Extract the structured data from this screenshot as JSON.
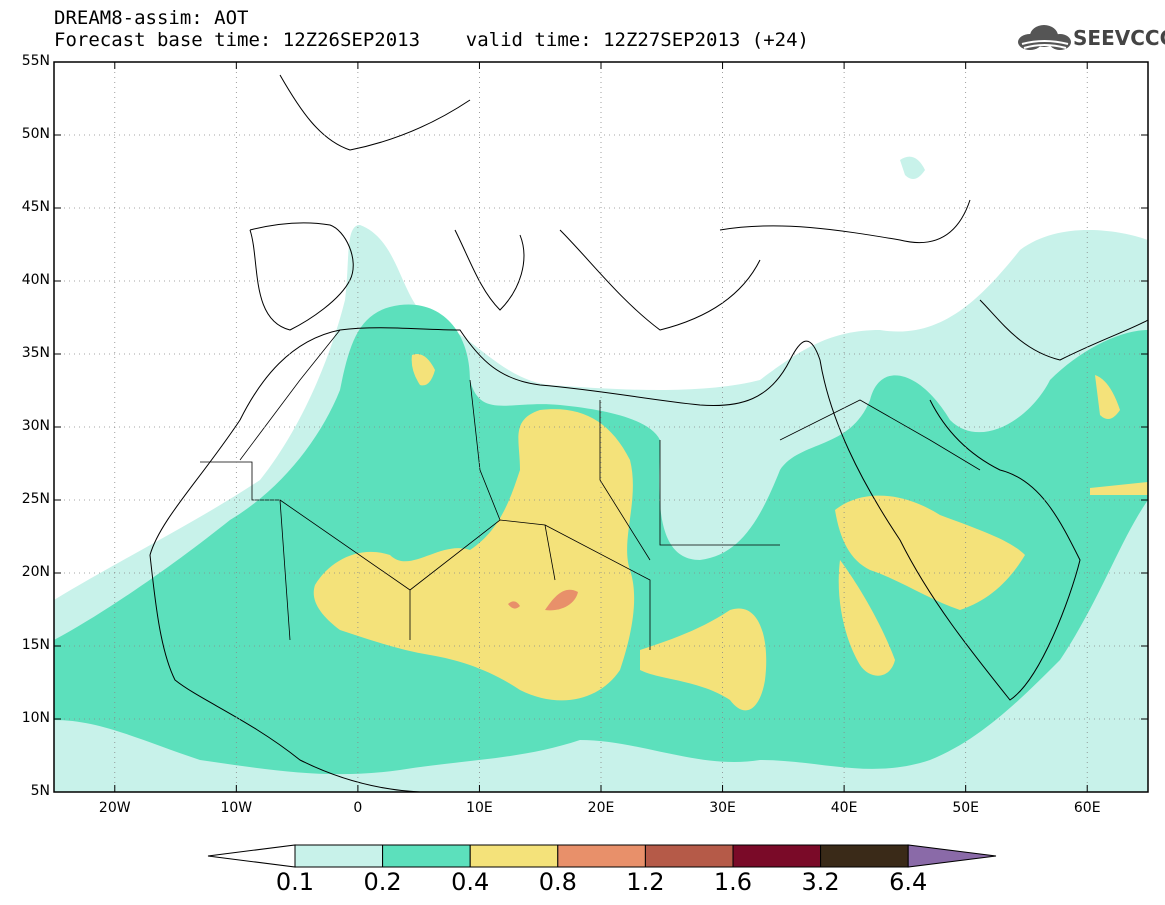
{
  "header": {
    "line1": "DREAM8-assim: AOT",
    "line2": "Forecast base time: 12Z26SEP2013    valid time: 12Z27SEP2013 (+24)"
  },
  "logo": {
    "text": "SEEVCCC",
    "icon": "cloud-icon"
  },
  "map": {
    "lon_range": [
      -25,
      65
    ],
    "lat_range": [
      5,
      55
    ],
    "grid": true,
    "lat_labels": [
      "55N",
      "50N",
      "45N",
      "40N",
      "35N",
      "30N",
      "25N",
      "20N",
      "15N",
      "10N",
      "5N"
    ],
    "lat_values": [
      55,
      50,
      45,
      40,
      35,
      30,
      25,
      20,
      15,
      10,
      5
    ],
    "lon_labels": [
      "20W",
      "10W",
      "0",
      "10E",
      "20E",
      "30E",
      "40E",
      "50E",
      "60E"
    ],
    "lon_values": [
      -20,
      -10,
      0,
      10,
      20,
      30,
      40,
      50,
      60
    ]
  },
  "colorbar": {
    "labels": [
      "0.1",
      "0.2",
      "0.4",
      "0.8",
      "1.2",
      "1.6",
      "3.2",
      "6.4"
    ],
    "colors": [
      "#c8f2ea",
      "#5ce0bc",
      "#f4e27a",
      "#e8906a",
      "#b55a48",
      "#7a0a28",
      "#3a2a18",
      "#8a6aa8"
    ],
    "below_color": "#ffffff",
    "above_color": "#8a6aa8"
  },
  "colors": {
    "aot_0_1": "#c8f2ea",
    "aot_0_2": "#5ce0bc",
    "aot_0_4": "#f4e27a",
    "aot_0_8": "#e8906a"
  }
}
